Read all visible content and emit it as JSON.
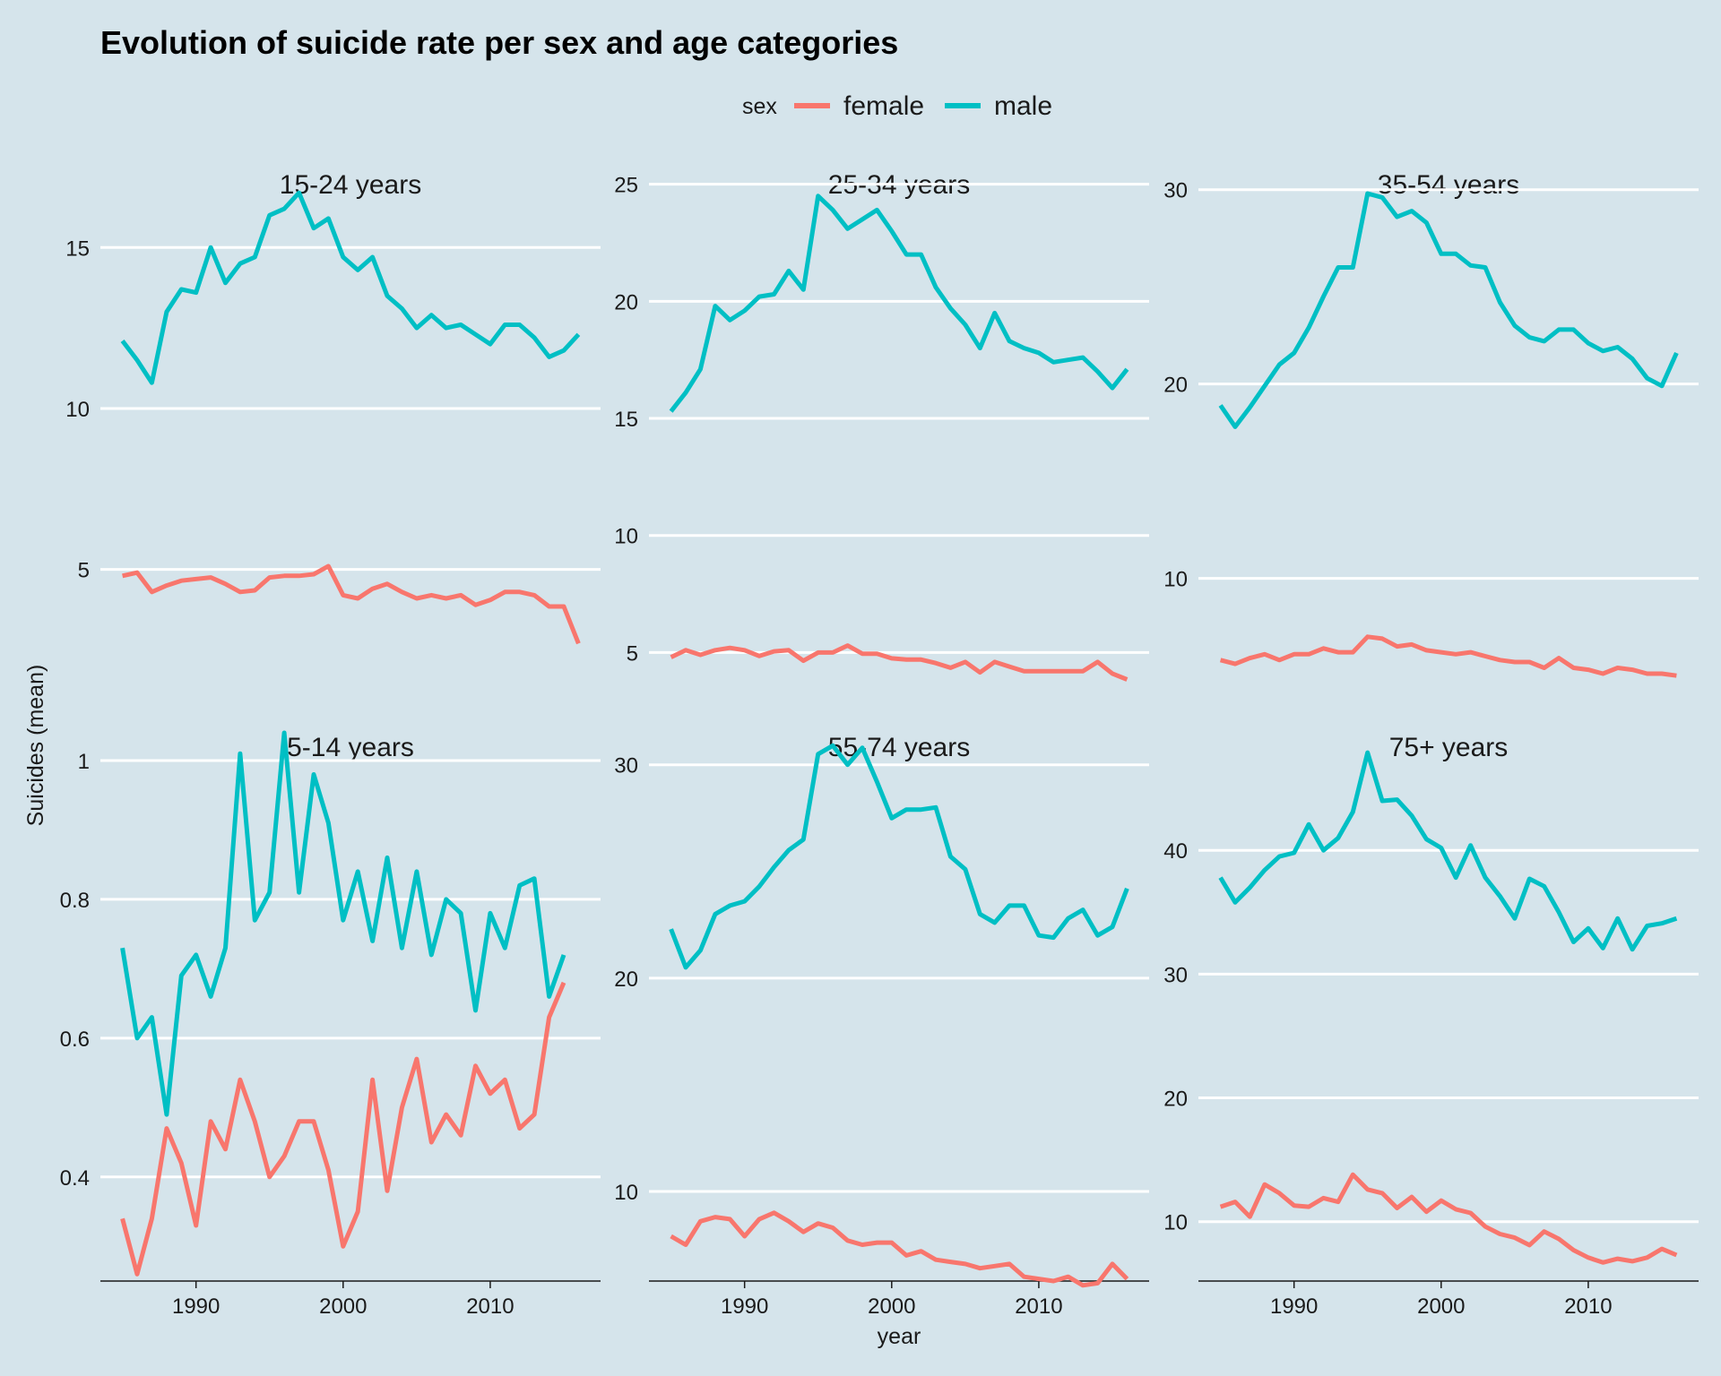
{
  "chart_data": {
    "type": "line",
    "title": "Evolution of suicide rate per sex and age categories",
    "xlabel": "year",
    "ylabel": "Suicides (mean)",
    "legend": {
      "title": "sex",
      "position": "top",
      "entries": [
        {
          "name": "female",
          "color": "#F8766D"
        },
        {
          "name": "male",
          "color": "#00BFC4"
        }
      ]
    },
    "x_ticks": [
      1990,
      2000,
      2010
    ],
    "x_range": [
      1985,
      2016
    ],
    "grid": "horizontal major only",
    "panels": [
      {
        "title": "15-24 years",
        "ylim": [
          1.4,
          17.4
        ],
        "yticks": [
          5,
          10,
          15
        ],
        "series": [
          {
            "name": "male",
            "color": "#00BFC4",
            "x": [
              1985,
              1986,
              1987,
              1988,
              1989,
              1990,
              1991,
              1992,
              1993,
              1994,
              1995,
              1996,
              1997,
              1998,
              1999,
              2000,
              2001,
              2002,
              2003,
              2004,
              2005,
              2006,
              2007,
              2008,
              2009,
              2010,
              2011,
              2012,
              2013,
              2014,
              2015,
              2016
            ],
            "values": [
              12.1,
              11.5,
              10.8,
              13.0,
              13.7,
              13.6,
              15.0,
              13.9,
              14.5,
              14.7,
              16.0,
              16.2,
              16.7,
              15.6,
              15.9,
              14.7,
              14.3,
              14.7,
              13.5,
              13.1,
              12.5,
              12.9,
              12.5,
              12.6,
              12.3,
              12.0,
              12.6,
              12.6,
              12.2,
              11.6,
              11.8,
              12.3
            ]
          },
          {
            "name": "female",
            "color": "#F8766D",
            "x": [
              1985,
              1986,
              1987,
              1988,
              1989,
              1990,
              1991,
              1992,
              1993,
              1994,
              1995,
              1996,
              1997,
              1998,
              1999,
              2000,
              2001,
              2002,
              2003,
              2004,
              2005,
              2006,
              2007,
              2008,
              2009,
              2010,
              2011,
              2012,
              2013,
              2014,
              2015,
              2016
            ],
            "values": [
              4.8,
              4.9,
              4.3,
              4.5,
              4.65,
              4.7,
              4.75,
              4.55,
              4.3,
              4.35,
              4.75,
              4.8,
              4.8,
              4.85,
              5.1,
              4.2,
              4.1,
              4.4,
              4.55,
              4.3,
              4.1,
              4.2,
              4.1,
              4.2,
              3.9,
              4.05,
              4.3,
              4.3,
              4.2,
              3.85,
              3.85,
              2.7
            ]
          }
        ]
      },
      {
        "title": "25-34 years",
        "ylim": [
          3.6,
          25.6
        ],
        "yticks": [
          5,
          10,
          15,
          20,
          25
        ],
        "series": [
          {
            "name": "male",
            "color": "#00BFC4",
            "x": [
              1985,
              1986,
              1987,
              1988,
              1989,
              1990,
              1991,
              1992,
              1993,
              1994,
              1995,
              1996,
              1997,
              1998,
              1999,
              2000,
              2001,
              2002,
              2003,
              2004,
              2005,
              2006,
              2007,
              2008,
              2009,
              2010,
              2011,
              2012,
              2013,
              2014,
              2015,
              2016
            ],
            "values": [
              15.3,
              16.1,
              17.1,
              19.8,
              19.2,
              19.6,
              20.2,
              20.3,
              21.3,
              20.5,
              24.5,
              23.9,
              23.1,
              23.5,
              23.9,
              23.0,
              22.0,
              22.0,
              20.6,
              19.7,
              19.0,
              18.0,
              19.5,
              18.3,
              18.0,
              17.8,
              17.4,
              17.5,
              17.6,
              17.0,
              16.3,
              17.1
            ]
          },
          {
            "name": "female",
            "color": "#F8766D",
            "x": [
              1985,
              1986,
              1987,
              1988,
              1989,
              1990,
              1991,
              1992,
              1993,
              1994,
              1995,
              1996,
              1997,
              1998,
              1999,
              2000,
              2001,
              2002,
              2003,
              2004,
              2005,
              2006,
              2007,
              2008,
              2009,
              2010,
              2011,
              2012,
              2013,
              2014,
              2015,
              2016
            ],
            "values": [
              4.8,
              5.1,
              4.9,
              5.1,
              5.2,
              5.1,
              4.85,
              5.05,
              5.1,
              4.65,
              5.0,
              5.0,
              5.3,
              4.95,
              4.95,
              4.75,
              4.7,
              4.7,
              4.55,
              4.35,
              4.6,
              4.15,
              4.6,
              4.4,
              4.2,
              4.2,
              4.2,
              4.2,
              4.2,
              4.6,
              4.1,
              3.85
            ]
          }
        ]
      },
      {
        "title": "35-54 years",
        "ylim": [
          4.5,
          31.0
        ],
        "yticks": [
          10,
          20,
          30
        ],
        "series": [
          {
            "name": "male",
            "color": "#00BFC4",
            "x": [
              1985,
              1986,
              1987,
              1988,
              1989,
              1990,
              1991,
              1992,
              1993,
              1994,
              1995,
              1996,
              1997,
              1998,
              1999,
              2000,
              2001,
              2002,
              2003,
              2004,
              2005,
              2006,
              2007,
              2008,
              2009,
              2010,
              2011,
              2012,
              2013,
              2014,
              2015,
              2016
            ],
            "values": [
              18.9,
              17.8,
              18.8,
              19.9,
              21.0,
              21.6,
              22.9,
              24.5,
              26.0,
              26.0,
              29.8,
              29.6,
              28.6,
              28.9,
              28.3,
              26.7,
              26.7,
              26.1,
              26.0,
              24.2,
              23.0,
              22.4,
              22.2,
              22.8,
              22.8,
              22.1,
              21.7,
              21.9,
              21.3,
              20.3,
              19.9,
              21.6
            ]
          },
          {
            "name": "female",
            "color": "#F8766D",
            "x": [
              1985,
              1986,
              1987,
              1988,
              1989,
              1990,
              1991,
              1992,
              1993,
              1994,
              1995,
              1996,
              1997,
              1998,
              1999,
              2000,
              2001,
              2002,
              2003,
              2004,
              2005,
              2006,
              2007,
              2008,
              2009,
              2010,
              2011,
              2012,
              2013,
              2014,
              2015,
              2016
            ],
            "values": [
              5.8,
              5.6,
              5.9,
              6.1,
              5.8,
              6.1,
              6.1,
              6.4,
              6.2,
              6.2,
              7.0,
              6.9,
              6.5,
              6.6,
              6.3,
              6.2,
              6.1,
              6.2,
              6.0,
              5.8,
              5.7,
              5.7,
              5.4,
              5.9,
              5.4,
              5.3,
              5.1,
              5.4,
              5.3,
              5.1,
              5.1,
              5.0
            ]
          }
        ]
      },
      {
        "title": "5-14 years",
        "ylim": [
          0.25,
          1.04
        ],
        "yticks": [
          0.4,
          0.6,
          0.8,
          1.0
        ],
        "series": [
          {
            "name": "male",
            "color": "#00BFC4",
            "x": [
              1985,
              1986,
              1987,
              1988,
              1989,
              1990,
              1991,
              1992,
              1993,
              1994,
              1995,
              1996,
              1997,
              1998,
              1999,
              2000,
              2001,
              2002,
              2003,
              2004,
              2005,
              2006,
              2007,
              2008,
              2009,
              2010,
              2011,
              2012,
              2013,
              2014,
              2015
            ],
            "values": [
              0.73,
              0.6,
              0.63,
              0.49,
              0.69,
              0.72,
              0.66,
              0.73,
              1.01,
              0.77,
              0.81,
              1.04,
              0.81,
              0.98,
              0.91,
              0.77,
              0.84,
              0.74,
              0.86,
              0.73,
              0.84,
              0.72,
              0.8,
              0.78,
              0.64,
              0.78,
              0.73,
              0.82,
              0.83,
              0.66,
              0.72
            ]
          },
          {
            "name": "female",
            "color": "#F8766D",
            "x": [
              1985,
              1986,
              1987,
              1988,
              1989,
              1990,
              1991,
              1992,
              1993,
              1994,
              1995,
              1996,
              1997,
              1998,
              1999,
              2000,
              2001,
              2002,
              2003,
              2004,
              2005,
              2006,
              2007,
              2008,
              2009,
              2010,
              2011,
              2012,
              2013,
              2014,
              2015
            ],
            "values": [
              0.34,
              0.26,
              0.34,
              0.47,
              0.42,
              0.33,
              0.48,
              0.44,
              0.54,
              0.48,
              0.4,
              0.43,
              0.48,
              0.48,
              0.41,
              0.3,
              0.35,
              0.54,
              0.38,
              0.5,
              0.57,
              0.45,
              0.49,
              0.46,
              0.56,
              0.52,
              0.54,
              0.47,
              0.49,
              0.63,
              0.68
            ]
          }
        ]
      },
      {
        "title": "55-74 years",
        "ylim": [
          5.8,
          31.5
        ],
        "yticks": [
          10,
          20,
          30
        ],
        "series": [
          {
            "name": "male",
            "color": "#00BFC4",
            "x": [
              1985,
              1986,
              1987,
              1988,
              1989,
              1990,
              1991,
              1992,
              1993,
              1994,
              1995,
              1996,
              1997,
              1998,
              1999,
              2000,
              2001,
              2002,
              2003,
              2004,
              2005,
              2006,
              2007,
              2008,
              2009,
              2010,
              2011,
              2012,
              2013,
              2014,
              2015,
              2016
            ],
            "values": [
              22.3,
              20.5,
              21.3,
              23.0,
              23.4,
              23.6,
              24.3,
              25.2,
              26.0,
              26.5,
              30.5,
              30.9,
              30.0,
              30.8,
              29.2,
              27.5,
              27.9,
              27.9,
              28.0,
              25.7,
              25.1,
              23.0,
              22.6,
              23.4,
              23.4,
              22.0,
              21.9,
              22.8,
              23.2,
              22.0,
              22.4,
              24.2
            ]
          },
          {
            "name": "female",
            "color": "#F8766D",
            "x": [
              1985,
              1986,
              1987,
              1988,
              1989,
              1990,
              1991,
              1992,
              1993,
              1994,
              1995,
              1996,
              1997,
              1998,
              1999,
              2000,
              2001,
              2002,
              2003,
              2004,
              2005,
              2006,
              2007,
              2008,
              2009,
              2010,
              2011,
              2012,
              2013,
              2014,
              2015,
              2016
            ],
            "values": [
              7.9,
              7.5,
              8.6,
              8.8,
              8.7,
              7.9,
              8.7,
              9.0,
              8.6,
              8.1,
              8.5,
              8.3,
              7.7,
              7.5,
              7.6,
              7.6,
              7.0,
              7.2,
              6.8,
              6.7,
              6.6,
              6.4,
              6.5,
              6.6,
              6.0,
              5.9,
              5.8,
              6.0,
              5.6,
              5.7,
              6.6,
              5.9
            ]
          }
        ]
      },
      {
        "title": "75+ years",
        "ylim": [
          5.2,
          49.5
        ],
        "yticks": [
          10,
          20,
          30,
          40
        ],
        "series": [
          {
            "name": "male",
            "color": "#00BFC4",
            "x": [
              1985,
              1986,
              1987,
              1988,
              1989,
              1990,
              1991,
              1992,
              1993,
              1994,
              1995,
              1996,
              1997,
              1998,
              1999,
              2000,
              2001,
              2002,
              2003,
              2004,
              2005,
              2006,
              2007,
              2008,
              2009,
              2010,
              2011,
              2012,
              2013,
              2014,
              2015,
              2016
            ],
            "values": [
              37.8,
              35.8,
              37.0,
              38.4,
              39.5,
              39.8,
              42.1,
              40.0,
              41.0,
              43.1,
              47.9,
              44.0,
              44.1,
              42.8,
              40.9,
              40.2,
              37.8,
              40.4,
              37.8,
              36.3,
              34.5,
              37.7,
              37.1,
              35.0,
              32.6,
              33.7,
              32.1,
              34.5,
              32.0,
              33.9,
              34.1,
              34.5
            ]
          },
          {
            "name": "female",
            "color": "#F8766D",
            "x": [
              1985,
              1986,
              1987,
              1988,
              1989,
              1990,
              1991,
              1992,
              1993,
              1994,
              1995,
              1996,
              1997,
              1998,
              1999,
              2000,
              2001,
              2002,
              2003,
              2004,
              2005,
              2006,
              2007,
              2008,
              2009,
              2010,
              2011,
              2012,
              2013,
              2014,
              2015,
              2016
            ],
            "values": [
              11.2,
              11.6,
              10.4,
              13.0,
              12.3,
              11.3,
              11.2,
              11.9,
              11.6,
              13.8,
              12.6,
              12.3,
              11.1,
              12.0,
              10.8,
              11.7,
              11.0,
              10.7,
              9.6,
              9.0,
              8.7,
              8.1,
              9.2,
              8.6,
              7.7,
              7.1,
              6.7,
              7.0,
              6.8,
              7.1,
              7.8,
              7.3
            ]
          }
        ]
      }
    ]
  }
}
